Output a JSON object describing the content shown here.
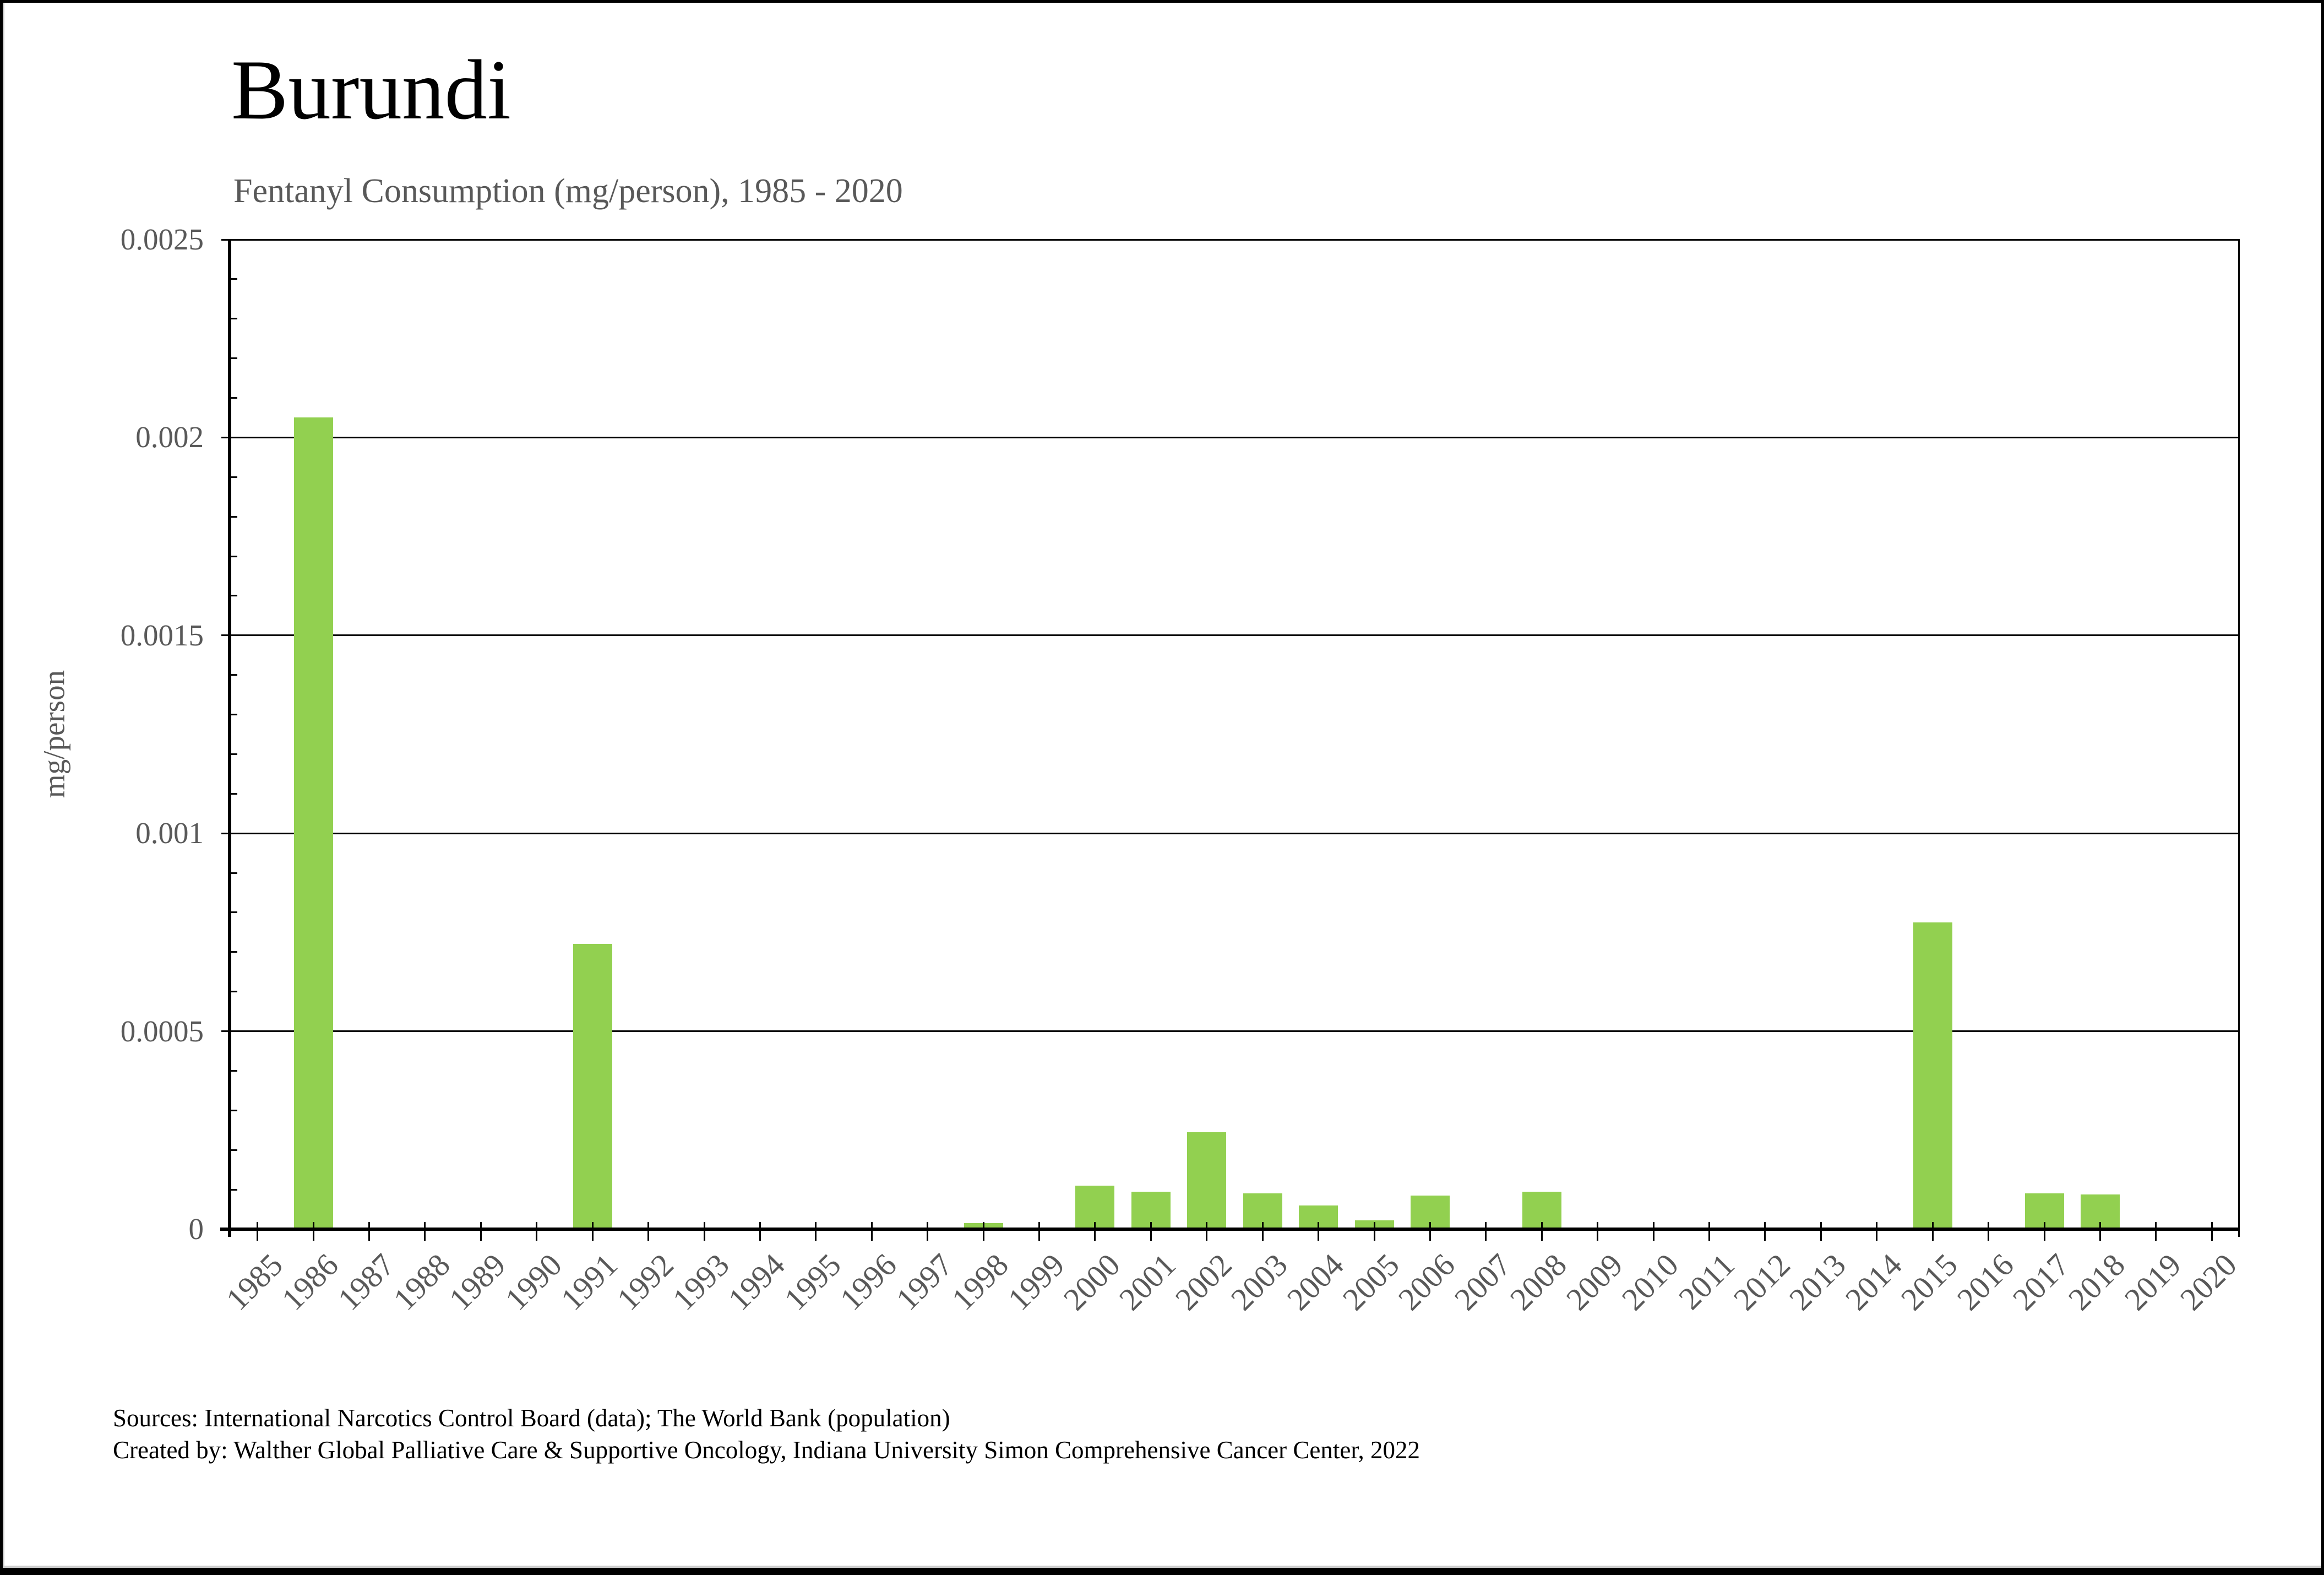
{
  "title": "Burundi",
  "subtitle": "Fentanyl Consumption (mg/person), 1985 - 2020",
  "y_axis": {
    "label": "mg/person",
    "tick_labels": [
      "0.0025",
      "0.002",
      "0.0015",
      "0.001",
      "0.0005",
      "0"
    ]
  },
  "footer": {
    "sources": "Sources: International Narcotics Control Board (data); The World Bank (population)",
    "credit": "Created by: Walther Global Palliative Care & Supportive Oncology, Indiana University Simon Comprehensive Cancer Center, 2022"
  },
  "colors": {
    "bar": "#92D050",
    "axis": "#000000",
    "grid": "#000000",
    "text": "#000000",
    "muted_text": "#595959",
    "frame": "#000000"
  },
  "chart_data": {
    "type": "bar",
    "title": "Burundi",
    "subtitle": "Fentanyl Consumption (mg/person), 1985 - 2020",
    "xlabel": "",
    "ylabel": "mg/person",
    "ylim": [
      0,
      0.0025
    ],
    "y_major_step": 0.0005,
    "y_minor_step": 0.0001,
    "grid": "horizontal-major",
    "legend_position": "none",
    "bar_color": "#92D050",
    "categories": [
      "1985",
      "1986",
      "1987",
      "1988",
      "1989",
      "1990",
      "1991",
      "1992",
      "1993",
      "1994",
      "1995",
      "1996",
      "1997",
      "1998",
      "1999",
      "2000",
      "2001",
      "2002",
      "2003",
      "2004",
      "2005",
      "2006",
      "2007",
      "2008",
      "2009",
      "2010",
      "2011",
      "2012",
      "2013",
      "2014",
      "2015",
      "2016",
      "2017",
      "2018",
      "2019",
      "2020"
    ],
    "values": [
      0,
      0.00205,
      0,
      0,
      0,
      0,
      0.00072,
      0,
      0,
      0,
      0,
      0,
      0,
      1.5e-05,
      0,
      0.00011,
      9.5e-05,
      0.000245,
      9e-05,
      6e-05,
      2.2e-05,
      8.5e-05,
      0,
      9.5e-05,
      0,
      0,
      0,
      0,
      0,
      0,
      0.000775,
      0,
      9e-05,
      8.8e-05,
      0,
      0
    ]
  }
}
